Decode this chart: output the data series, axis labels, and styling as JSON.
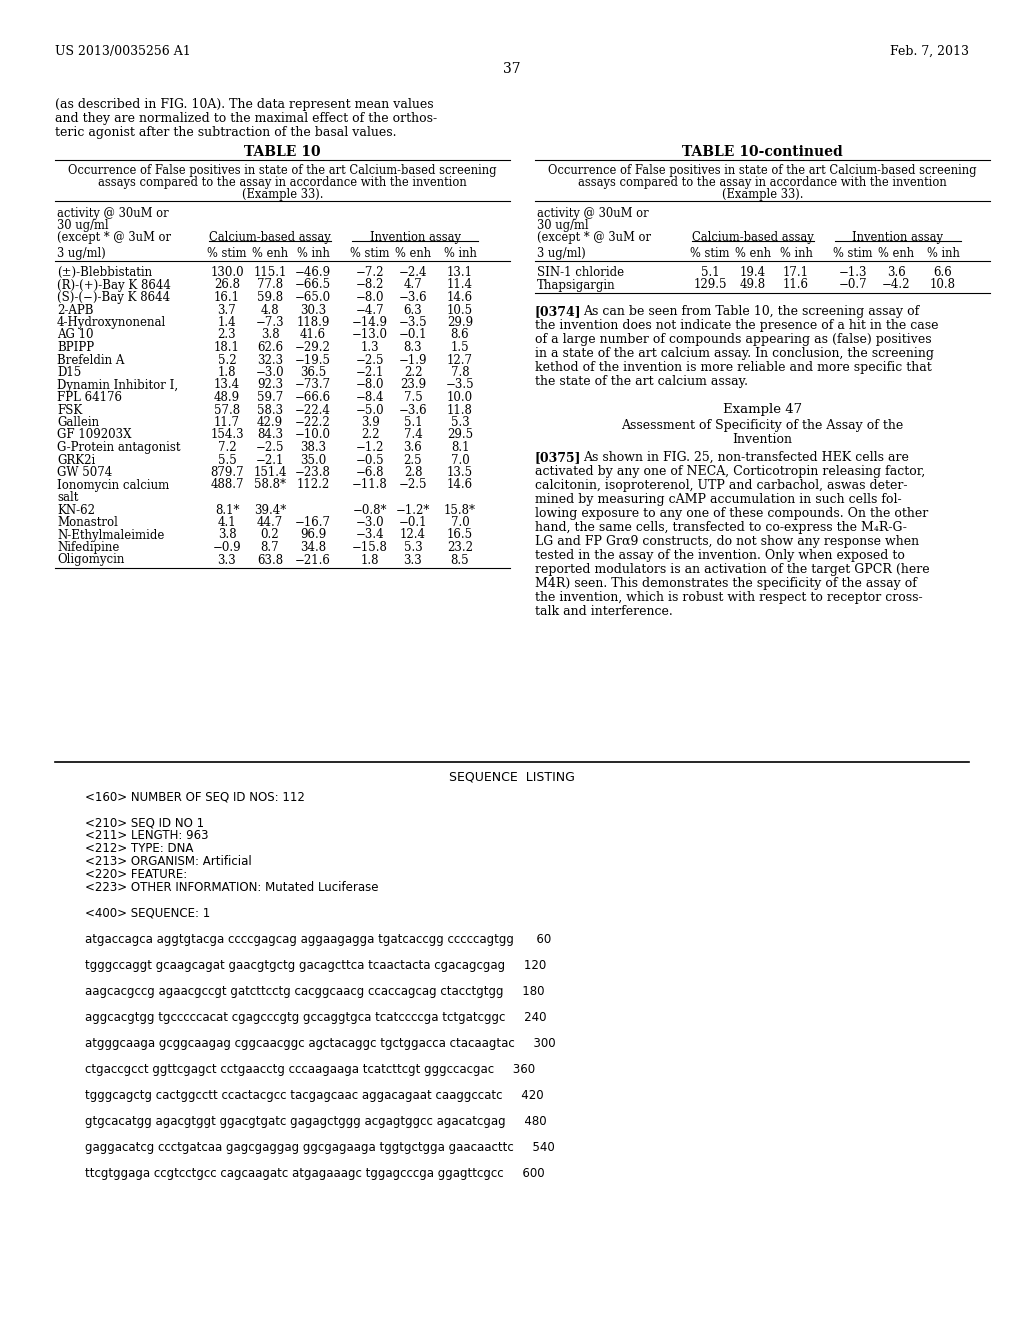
{
  "page_number": "37",
  "header_left": "US 2013/0035256 A1",
  "header_right": "Feb. 7, 2013",
  "bg_color": "#ffffff",
  "left_intro_text": "(as described in FIG. 10A). The data represent mean values\nand they are normalized to the maximal effect of the orthos-\nteric agonist after the subtraction of the basal values.",
  "table10_title": "TABLE 10",
  "table10_subtitle": "Occurrence of False positives in state of the art Calcium-based screening\nassays compared to the assay in accordance with the invention\n(Example 33).",
  "table10_subcols": [
    "% stim",
    "% enh",
    "% inh",
    "% stim",
    "% enh",
    "% inh"
  ],
  "table10_rows": [
    [
      "(±)-Blebbistatin",
      "130.0",
      "115.1",
      "−46.9",
      "−7.2",
      "−2.4",
      "13.1"
    ],
    [
      "(R)-(+)-Bay K 8644",
      "26.8",
      "77.8",
      "−66.5",
      "−8.2",
      "4.7",
      "11.4"
    ],
    [
      "(S)-(−)-Bay K 8644",
      "16.1",
      "59.8",
      "−65.0",
      "−8.0",
      "−3.6",
      "14.6"
    ],
    [
      "2-APB",
      "3.7",
      "4.8",
      "30.3",
      "−4.7",
      "6.3",
      "10.5"
    ],
    [
      "4-Hydroxynonenal",
      "1.4",
      "−7.3",
      "118.9",
      "−14.9",
      "−3.5",
      "29.9"
    ],
    [
      "AG 10",
      "2.3",
      "3.8",
      "41.6",
      "−13.0",
      "−0.1",
      "8.6"
    ],
    [
      "BPIPP",
      "18.1",
      "62.6",
      "−29.2",
      "1.3",
      "8.3",
      "1.5"
    ],
    [
      "Brefeldin A",
      "5.2",
      "32.3",
      "−19.5",
      "−2.5",
      "−1.9",
      "12.7"
    ],
    [
      "D15",
      "1.8",
      "−3.0",
      "36.5",
      "−2.1",
      "2.2",
      "7.8"
    ],
    [
      "Dynamin Inhibitor I,",
      "13.4",
      "92.3",
      "−73.7",
      "−8.0",
      "23.9",
      "−3.5"
    ],
    [
      "FPL 64176",
      "48.9",
      "59.7",
      "−66.6",
      "−8.4",
      "7.5",
      "10.0"
    ],
    [
      "FSK",
      "57.8",
      "58.3",
      "−22.4",
      "−5.0",
      "−3.6",
      "11.8"
    ],
    [
      "Gallein",
      "11.7",
      "42.9",
      "−22.2",
      "3.9",
      "5.1",
      "5.3"
    ],
    [
      "GF 109203X",
      "154.3",
      "84.3",
      "−10.0",
      "2.2",
      "7.4",
      "29.5"
    ],
    [
      "G-Protein antagonist",
      "7.2",
      "−2.5",
      "38.3",
      "−1.2",
      "3.6",
      "8.1"
    ],
    [
      "GRK2i",
      "5.5",
      "−2.1",
      "35.0",
      "−0.5",
      "2.5",
      "7.0"
    ],
    [
      "GW 5074",
      "879.7",
      "151.4",
      "−23.8",
      "−6.8",
      "2.8",
      "13.5"
    ],
    [
      "Ionomycin calcium\nsalt",
      "488.7",
      "58.8*",
      "112.2",
      "−11.8",
      "−2.5",
      "14.6"
    ],
    [
      "KN-62",
      "8.1*",
      "39.4*",
      "",
      "−0.8*",
      "−1.2*",
      "15.8*"
    ],
    [
      "Monastrol",
      "4.1",
      "44.7",
      "−16.7",
      "−3.0",
      "−0.1",
      "7.0"
    ],
    [
      "N-Ethylmaleimide",
      "3.8",
      "0.2",
      "96.9",
      "−3.4",
      "12.4",
      "16.5"
    ],
    [
      "Nifedipine",
      "−0.9",
      "8.7",
      "34.8",
      "−15.8",
      "5.3",
      "23.2"
    ],
    [
      "Oligomycin",
      "3.3",
      "63.8",
      "−21.6",
      "1.8",
      "3.3",
      "8.5"
    ]
  ],
  "table10c_title": "TABLE 10-continued",
  "table10c_subtitle": "Occurrence of False positives in state of the art Calcium-based screening\nassays compared to the assay in accordance with the invention\n(Example 33).",
  "table10c_rows": [
    [
      "SIN-1 chloride",
      "5.1",
      "19.4",
      "17.1",
      "−1.3",
      "3.6",
      "6.6"
    ],
    [
      "Thapsigargin",
      "129.5",
      "49.8",
      "11.6",
      "−0.7",
      "−4.2",
      "10.8"
    ]
  ],
  "para374_label": "[0374]",
  "para374_text": "As can be seen from Table 10, the screening assay of the invention does not indicate the presence of a hit in the case of a large number of compounds appearing as (false) positives in a state of the art calcium assay. In conclusion, the screening kethod of the invention is more reliable and more specific that the state of the art calcium assay.",
  "example47_title": "Example 47",
  "example47_subtitle": "Assessment of Specificity of the Assay of the\nInvention",
  "para375_label": "[0375]",
  "para375_text_bold": "As shown in FIG. ",
  "para375_bold_part": "25",
  "para375_text": "As shown in FIG. 25, non-transfected HEK cells are activated by any one of NECA, Corticotropin releasing factor, calcitonin, isoproterenol, UTP and carbachol, aswas deter-mined by measuring cAMP accumulation in such cells fol-lowing exposure to any one of these compounds. On the other hand, the same cells, transfected to co-express the M4R-G-LG and FP Gr9 constructs, do not show any response when tested in the assay of the invention. Only when exposed to reported modulators is an activation of the target GPCR (here M4R) seen. This demonstrates the specificity of the assay of the invention, which is robust with respect to receptor cross-talk and interference.",
  "seq_listing_title": "SEQUENCE  LISTING",
  "seq_lines": [
    "<160> NUMBER OF SEQ ID NOS: 112",
    "",
    "<210> SEQ ID NO 1",
    "<211> LENGTH: 963",
    "<212> TYPE: DNA",
    "<213> ORGANISM: Artificial",
    "<220> FEATURE:",
    "<223> OTHER INFORMATION: Mutated Luciferase",
    "",
    "<400> SEQUENCE: 1",
    "",
    "atgaccagca aggtgtacga ccccgagcag aggaagagga tgatcaccgg cccccagtgg      60",
    "",
    "tgggccaggt gcaagcagat gaacgtgctg gacagcttca tcaactacta cgacagcgag     120",
    "",
    "aagcacgccg agaacgccgt gatcttcctg cacggcaacg ccaccagcag ctacctgtgg     180",
    "",
    "aggcacgtgg tgcccccacat cgagcccgtg gccaggtgca tcatccccga tctgatcggc     240",
    "",
    "atgggcaaga gcggcaagag cggcaacggc agctacaggc tgctggacca ctacaagtac     300",
    "",
    "ctgaccgcct ggttcgagct cctgaacctg cccaagaaga tcatcttcgt gggccacgac     360",
    "",
    "tgggcagctg cactggcctt ccactacgcc tacgagcaac aggacagaat caaggccatc     420",
    "",
    "gtgcacatgg agacgtggt ggacgtgatc gagagctggg acgagtggcc agacatcgag     480",
    "",
    "gaggacatcg ccctgatcaa gagcgaggag ggcgagaaga tggtgctgga gaacaacttc     540",
    "",
    "ttcgtggaga ccgtcctgcc cagcaagatc atgagaaagc tggagcccga ggagttcgcc     600"
  ]
}
